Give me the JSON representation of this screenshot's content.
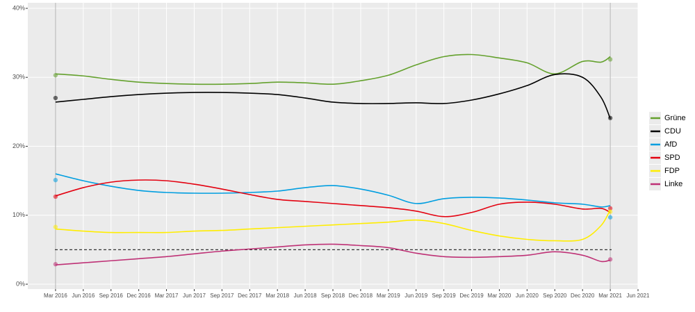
{
  "chart_data": {
    "type": "line",
    "x": [
      "2016-03",
      "2016-06",
      "2016-09",
      "2016-12",
      "2017-03",
      "2017-06",
      "2017-09",
      "2017-12",
      "2018-03",
      "2018-06",
      "2018-09",
      "2018-12",
      "2019-03",
      "2019-06",
      "2019-09",
      "2019-12",
      "2020-03",
      "2020-06",
      "2020-09",
      "2020-12",
      "2021-02",
      "2021-03"
    ],
    "series": [
      {
        "name": "Grüne",
        "color": "#64a12d",
        "values": [
          30.5,
          30.2,
          29.7,
          29.3,
          29.1,
          29.0,
          29.0,
          29.1,
          29.3,
          29.2,
          29.0,
          29.5,
          30.3,
          31.8,
          33.0,
          33.3,
          32.8,
          32.1,
          30.5,
          32.3,
          32.2,
          33.0
        ],
        "results": [
          30.3,
          32.6
        ]
      },
      {
        "name": "CDU",
        "color": "#000000",
        "values": [
          26.4,
          26.8,
          27.2,
          27.5,
          27.7,
          27.8,
          27.8,
          27.7,
          27.5,
          27.0,
          26.4,
          26.2,
          26.2,
          26.3,
          26.2,
          26.7,
          27.6,
          28.8,
          30.4,
          30.0,
          27.1,
          24.0
        ],
        "results": [
          27.0,
          24.1
        ]
      },
      {
        "name": "AfD",
        "color": "#009ee0",
        "values": [
          16.0,
          15.0,
          14.2,
          13.6,
          13.3,
          13.2,
          13.2,
          13.3,
          13.5,
          14.0,
          14.3,
          13.8,
          12.9,
          11.7,
          12.4,
          12.6,
          12.5,
          12.2,
          11.8,
          11.6,
          11.2,
          11.4
        ],
        "results": [
          15.1,
          9.7
        ]
      },
      {
        "name": "SPD",
        "color": "#e3000f",
        "values": [
          12.8,
          14.0,
          14.8,
          15.1,
          15.0,
          14.5,
          13.8,
          13.0,
          12.3,
          12.0,
          11.7,
          11.4,
          11.1,
          10.6,
          9.8,
          10.4,
          11.6,
          11.9,
          11.6,
          10.9,
          11.0,
          10.4
        ],
        "results": [
          12.7,
          11.0
        ]
      },
      {
        "name": "FDP",
        "color": "#ffed00",
        "values": [
          8.0,
          7.7,
          7.5,
          7.5,
          7.5,
          7.7,
          7.8,
          8.0,
          8.2,
          8.4,
          8.6,
          8.8,
          9.0,
          9.3,
          8.8,
          7.8,
          7.0,
          6.5,
          6.3,
          6.5,
          8.5,
          10.8
        ],
        "results": [
          8.3,
          10.5
        ]
      },
      {
        "name": "Linke",
        "color": "#be3075",
        "values": [
          2.8,
          3.1,
          3.4,
          3.7,
          4.0,
          4.4,
          4.8,
          5.1,
          5.4,
          5.7,
          5.8,
          5.6,
          5.3,
          4.5,
          4.0,
          3.9,
          4.0,
          4.2,
          4.7,
          4.2,
          3.3,
          3.5
        ],
        "results": [
          2.9,
          3.6
        ]
      }
    ],
    "results_x": [
      "2016-03",
      "2021-03"
    ],
    "xlim": [
      "2015-12",
      "2021-06"
    ],
    "xticks": [
      {
        "value": "2016-03",
        "label": "Mar 2016"
      },
      {
        "value": "2016-06",
        "label": "Jun 2016"
      },
      {
        "value": "2016-09",
        "label": "Sep 2016"
      },
      {
        "value": "2016-12",
        "label": "Dec 2016"
      },
      {
        "value": "2017-03",
        "label": "Mar 2017"
      },
      {
        "value": "2017-06",
        "label": "Jun 2017"
      },
      {
        "value": "2017-09",
        "label": "Sep 2017"
      },
      {
        "value": "2017-12",
        "label": "Dec 2017"
      },
      {
        "value": "2018-03",
        "label": "Mar 2018"
      },
      {
        "value": "2018-06",
        "label": "Jun 2018"
      },
      {
        "value": "2018-09",
        "label": "Sep 2018"
      },
      {
        "value": "2018-12",
        "label": "Dec 2018"
      },
      {
        "value": "2019-03",
        "label": "Mar 2019"
      },
      {
        "value": "2019-06",
        "label": "Jun 2019"
      },
      {
        "value": "2019-09",
        "label": "Sep 2019"
      },
      {
        "value": "2019-12",
        "label": "Dec 2019"
      },
      {
        "value": "2020-03",
        "label": "Mar 2020"
      },
      {
        "value": "2020-06",
        "label": "Jun 2020"
      },
      {
        "value": "2020-09",
        "label": "Sep 2020"
      },
      {
        "value": "2020-12",
        "label": "Dec 2020"
      },
      {
        "value": "2021-03",
        "label": "Mar 2021"
      },
      {
        "value": "2021-06",
        "label": "Jun 2021"
      }
    ],
    "ylim": [
      0,
      40
    ],
    "yticks": [
      {
        "value": 0,
        "label": "0%"
      },
      {
        "value": 10,
        "label": "10%"
      },
      {
        "value": 20,
        "label": "20%"
      },
      {
        "value": 30,
        "label": "30%"
      },
      {
        "value": 40,
        "label": "40%"
      }
    ],
    "threshold": 5,
    "election_lines": [
      "2016-03",
      "2021-03"
    ],
    "grid": true,
    "legend": "right"
  }
}
